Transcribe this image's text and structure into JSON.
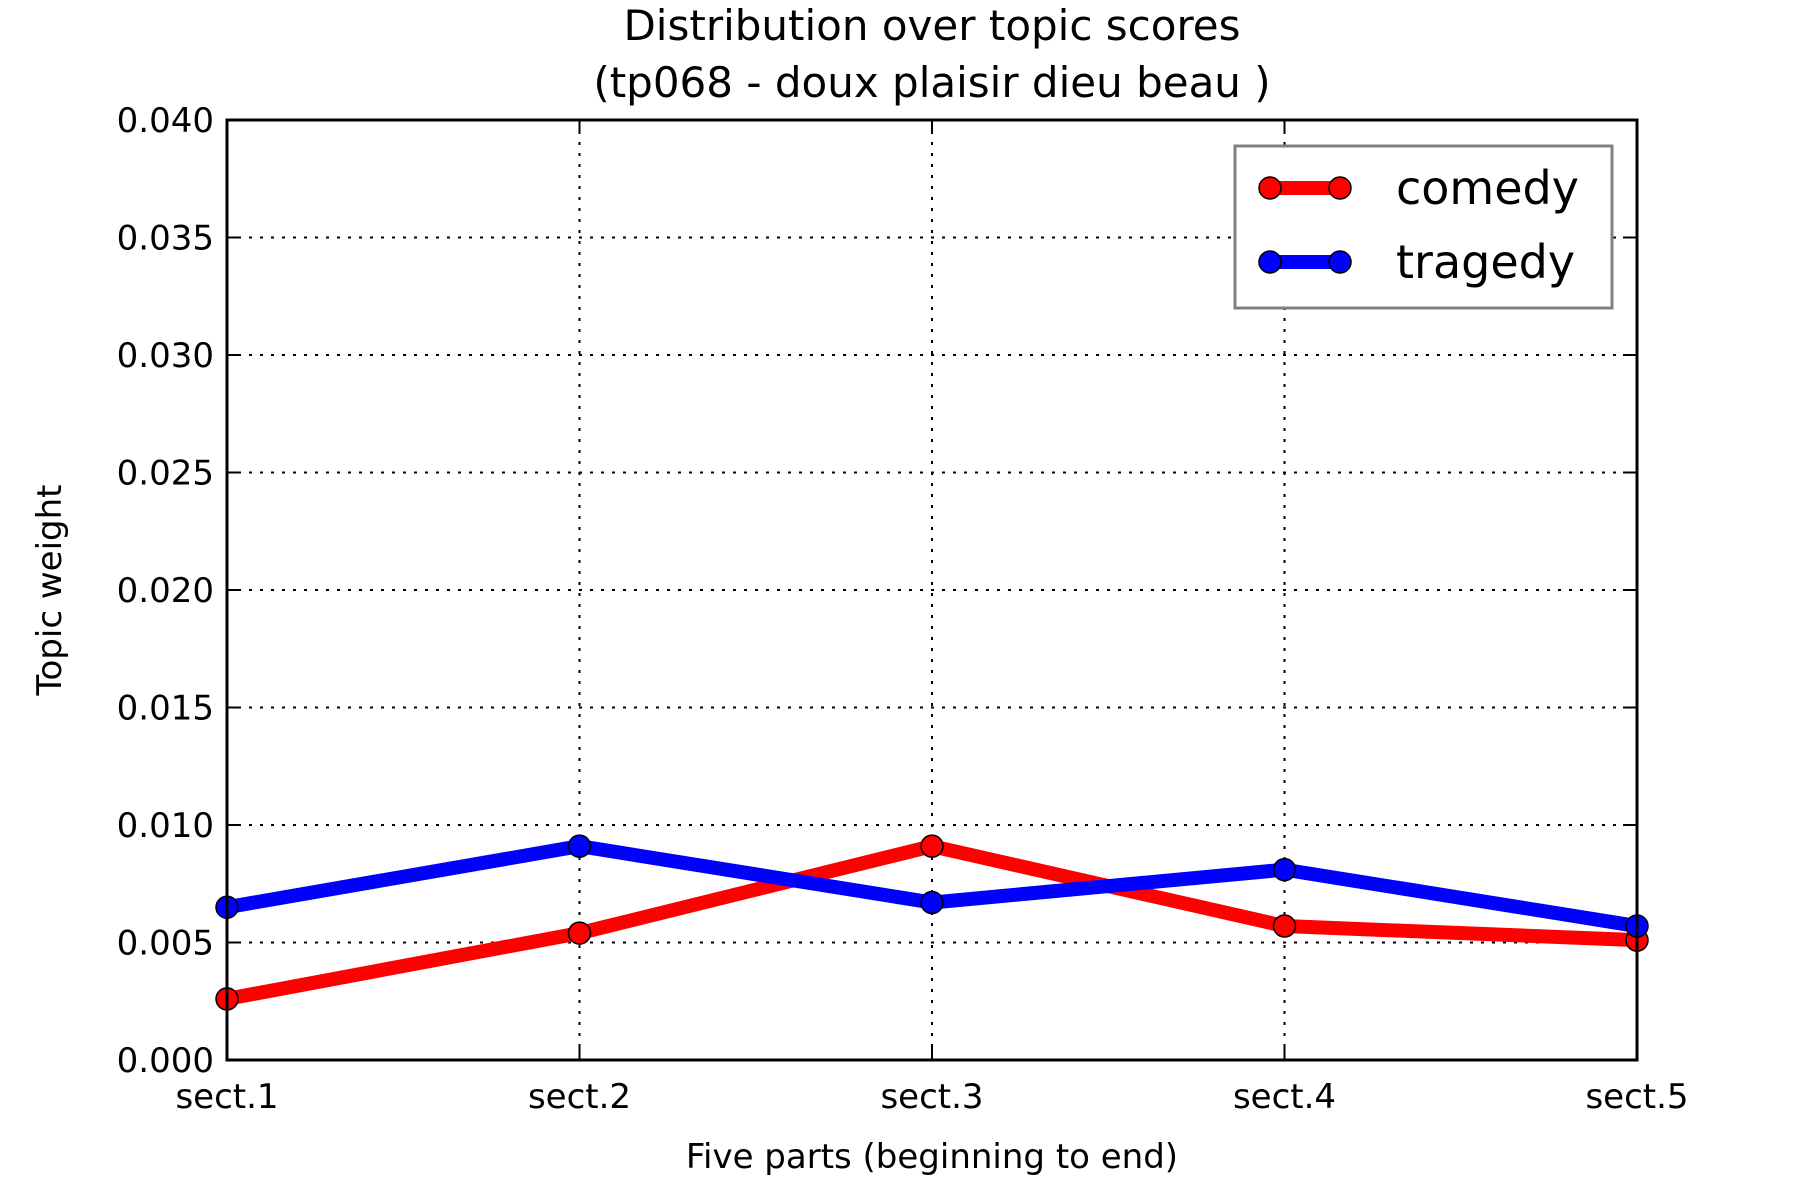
{
  "chart_data": {
    "type": "line",
    "title": "Distribution over topic scores",
    "subtitle": "(tp068 - doux plaisir dieu beau )",
    "xlabel": "Five parts (beginning to end)",
    "ylabel": "Topic weight",
    "categories": [
      "sect.1",
      "sect.2",
      "sect.3",
      "sect.4",
      "sect.5"
    ],
    "ylim": [
      0,
      0.04
    ],
    "yticks": [
      "0.000",
      "0.005",
      "0.010",
      "0.015",
      "0.020",
      "0.025",
      "0.030",
      "0.035",
      "0.040"
    ],
    "grid": true,
    "legend_position": "top-right",
    "series": [
      {
        "name": "comedy",
        "color": "#ff0000",
        "values": [
          0.0026,
          0.0054,
          0.0091,
          0.0057,
          0.0051
        ]
      },
      {
        "name": "tragedy",
        "color": "#0000ff",
        "values": [
          0.0065,
          0.0091,
          0.0067,
          0.0081,
          0.0057
        ]
      }
    ]
  }
}
